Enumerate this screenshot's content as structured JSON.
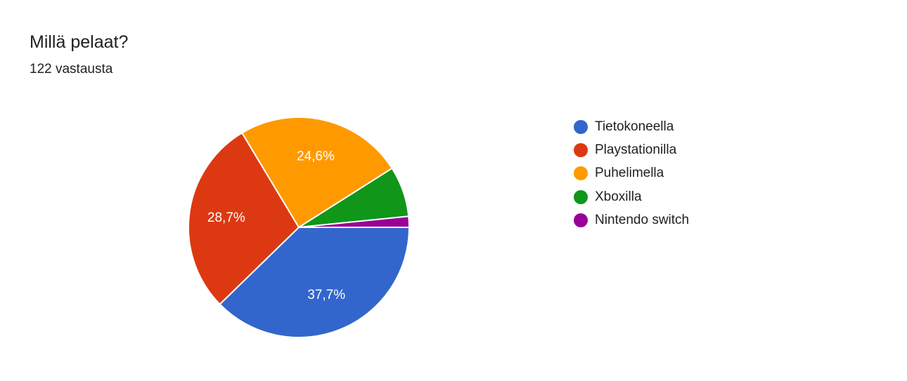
{
  "header": {
    "title": "Millä pelaat?",
    "subtitle": "122 vastausta"
  },
  "chart_data": {
    "type": "pie",
    "title": "Millä pelaat?",
    "subtitle": "122 vastausta",
    "legend_position": "right",
    "start_angle_deg": 90,
    "direction": "clockwise",
    "slices": [
      {
        "label": "Tietokoneella",
        "value": 37.7,
        "display": "37,7%",
        "color": "#3366cc"
      },
      {
        "label": "Playstationilla",
        "value": 28.7,
        "display": "28,7%",
        "color": "#dc3912"
      },
      {
        "label": "Puhelimella",
        "value": 24.6,
        "display": "24,6%",
        "color": "#ff9900"
      },
      {
        "label": "Xboxilla",
        "value": 7.4,
        "display": "",
        "color": "#109618"
      },
      {
        "label": "Nintendo switch",
        "value": 1.6,
        "display": "",
        "color": "#990099"
      }
    ]
  }
}
